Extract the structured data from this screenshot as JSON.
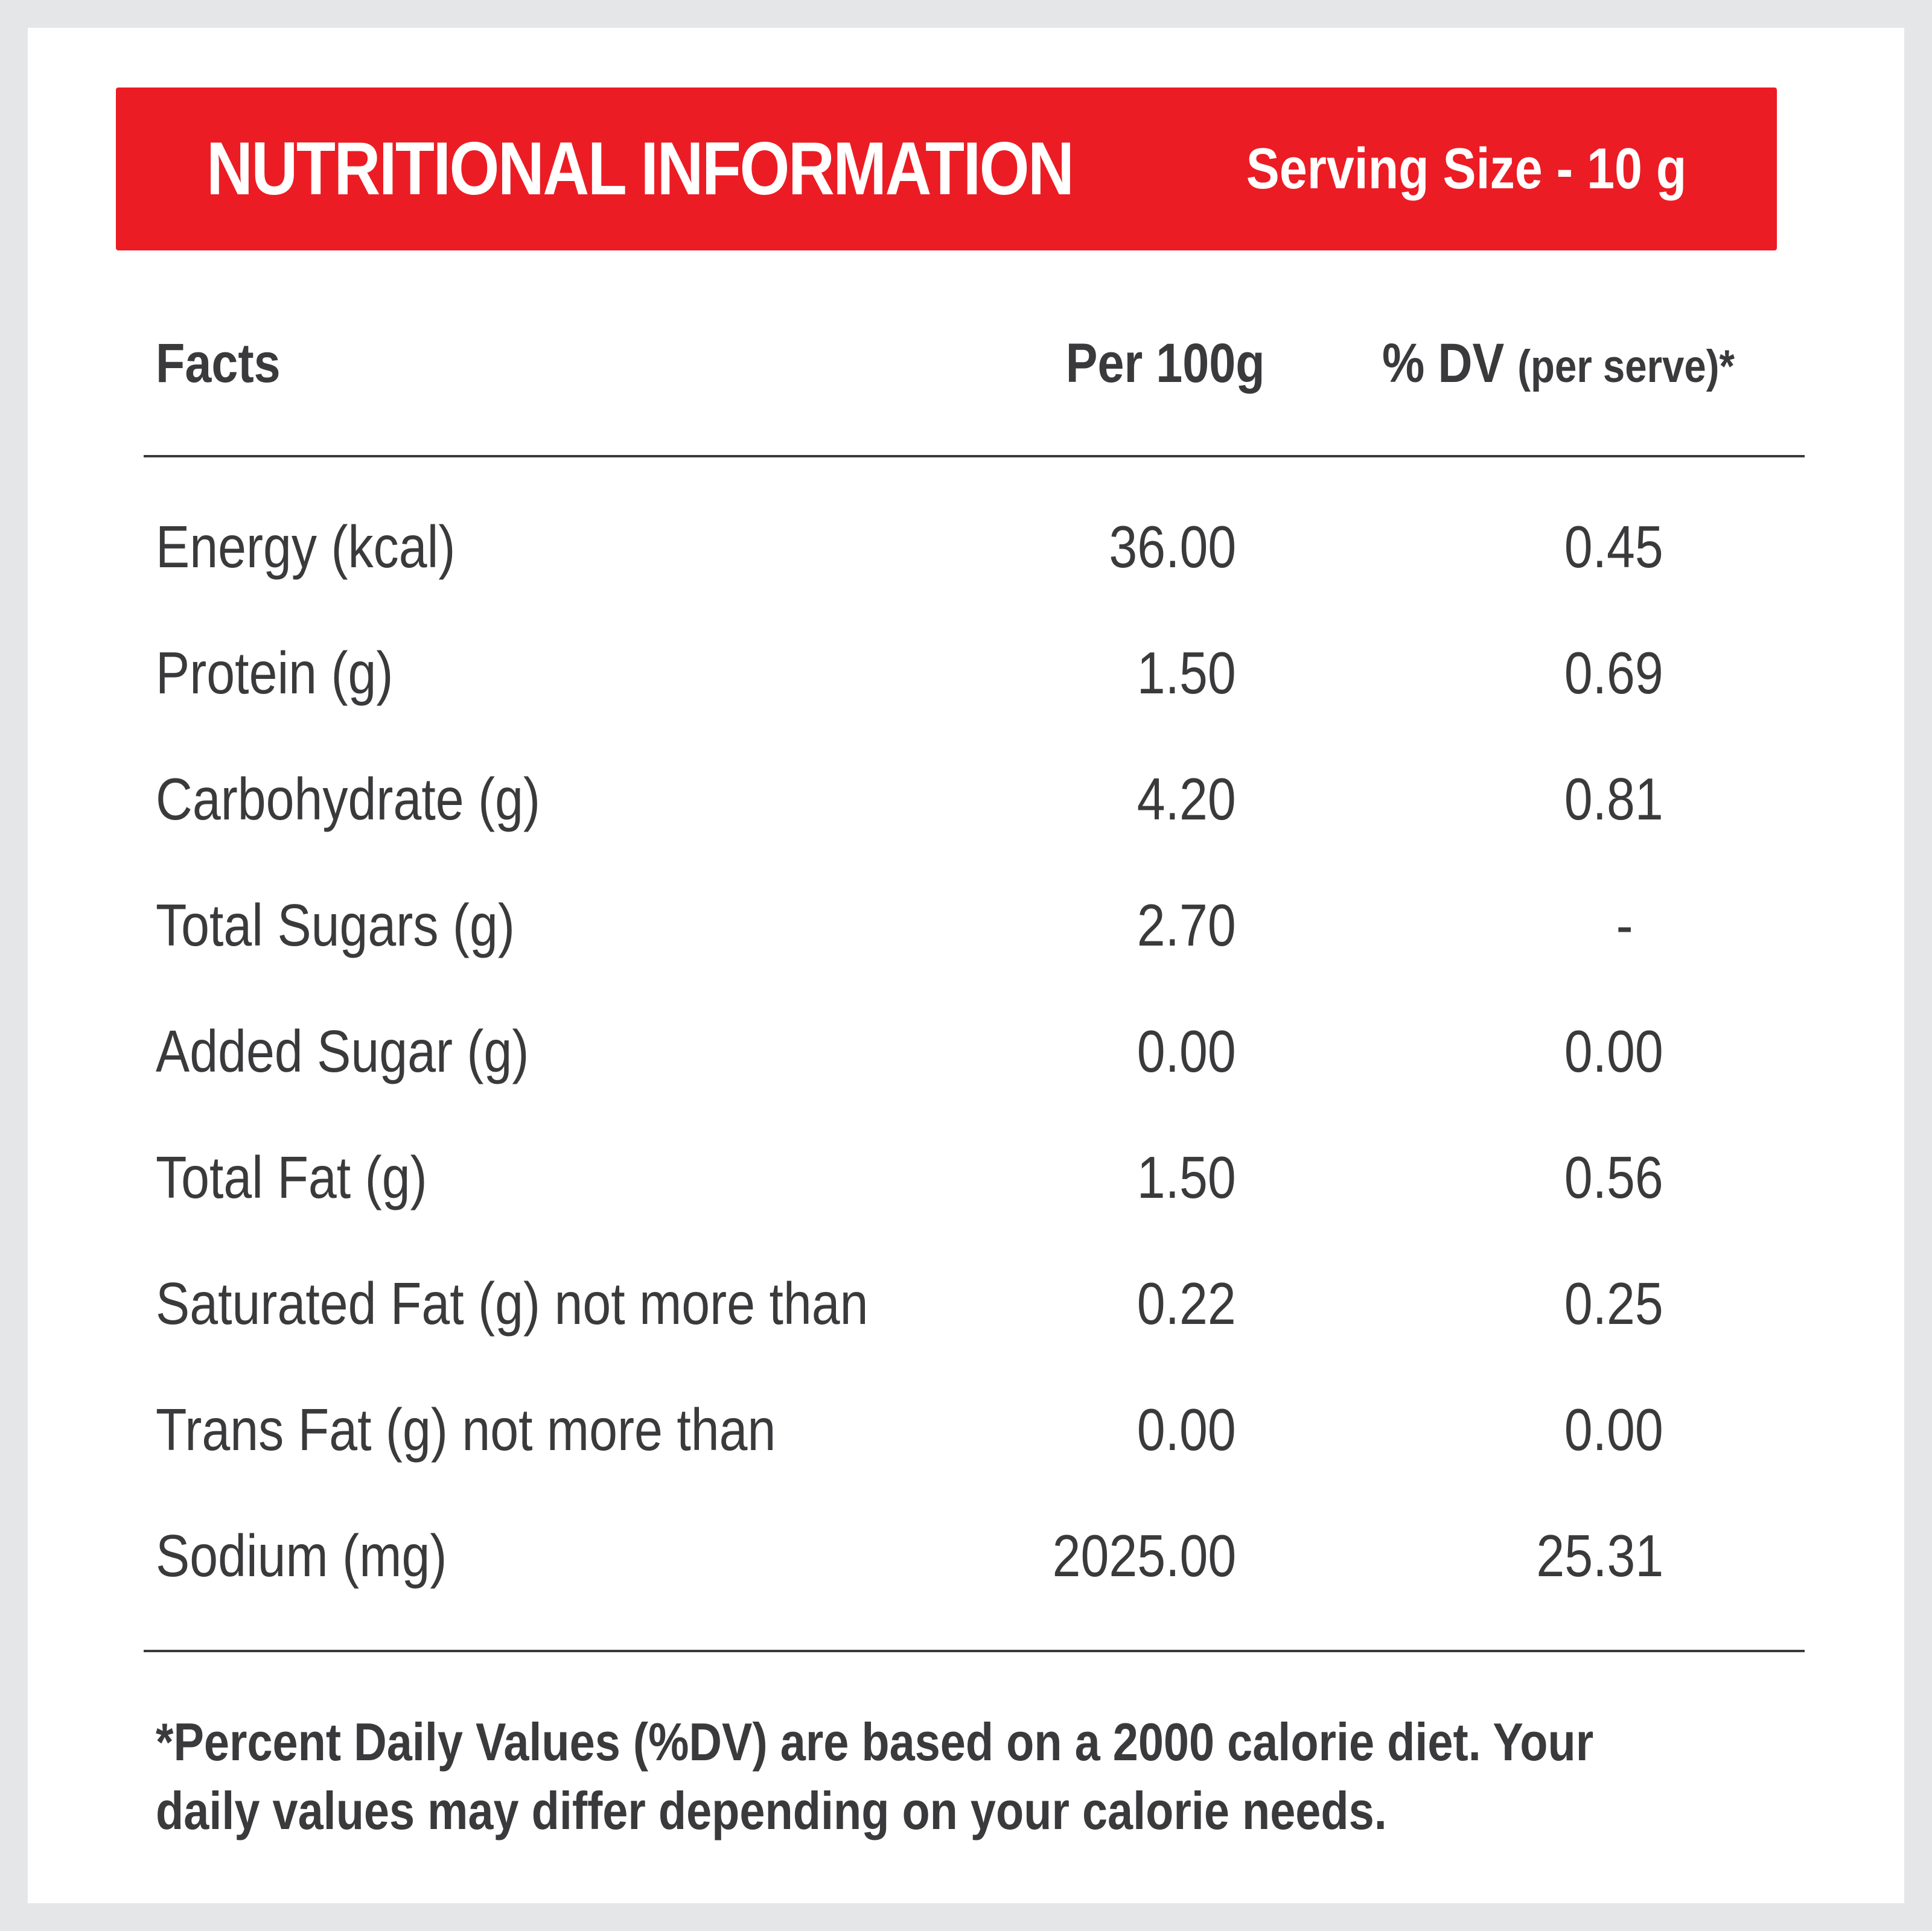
{
  "banner": {
    "title": "NUTRITIONAL INFORMATION",
    "serving_size": "Serving Size - 10 g"
  },
  "table": {
    "headers": {
      "facts": "Facts",
      "per_100g": "Per 100g",
      "dv_main": "% DV",
      "dv_sub": "(per serve)*"
    },
    "rows": [
      {
        "label": "Energy (kcal)",
        "per_100g": "36.00",
        "dv": "0.45"
      },
      {
        "label": "Protein (g)",
        "per_100g": "1.50",
        "dv": "0.69"
      },
      {
        "label": "Carbohydrate (g)",
        "per_100g": "4.20",
        "dv": "0.81"
      },
      {
        "label": "Total Sugars (g)",
        "per_100g": "2.70",
        "dv": "-"
      },
      {
        "label": "Added Sugar (g)",
        "per_100g": "0.00",
        "dv": "0.00"
      },
      {
        "label": "Total Fat (g)",
        "per_100g": "1.50",
        "dv": "0.56"
      },
      {
        "label": "Saturated Fat (g) not more than",
        "per_100g": "0.22",
        "dv": "0.25"
      },
      {
        "label": "Trans Fat (g) not more than",
        "per_100g": "0.00",
        "dv": "0.00"
      },
      {
        "label": "Sodium (mg)",
        "per_100g": "2025.00",
        "dv": "25.31"
      }
    ]
  },
  "footnote": "*Percent Daily Values (%DV) are based on a 2000 calorie diet. Your daily values may differ depending on your calorie needs.",
  "colors": {
    "banner": "#ec1c24",
    "text": "#3a3a3c",
    "frame": "#e5e6e8",
    "card": "#ffffff"
  }
}
